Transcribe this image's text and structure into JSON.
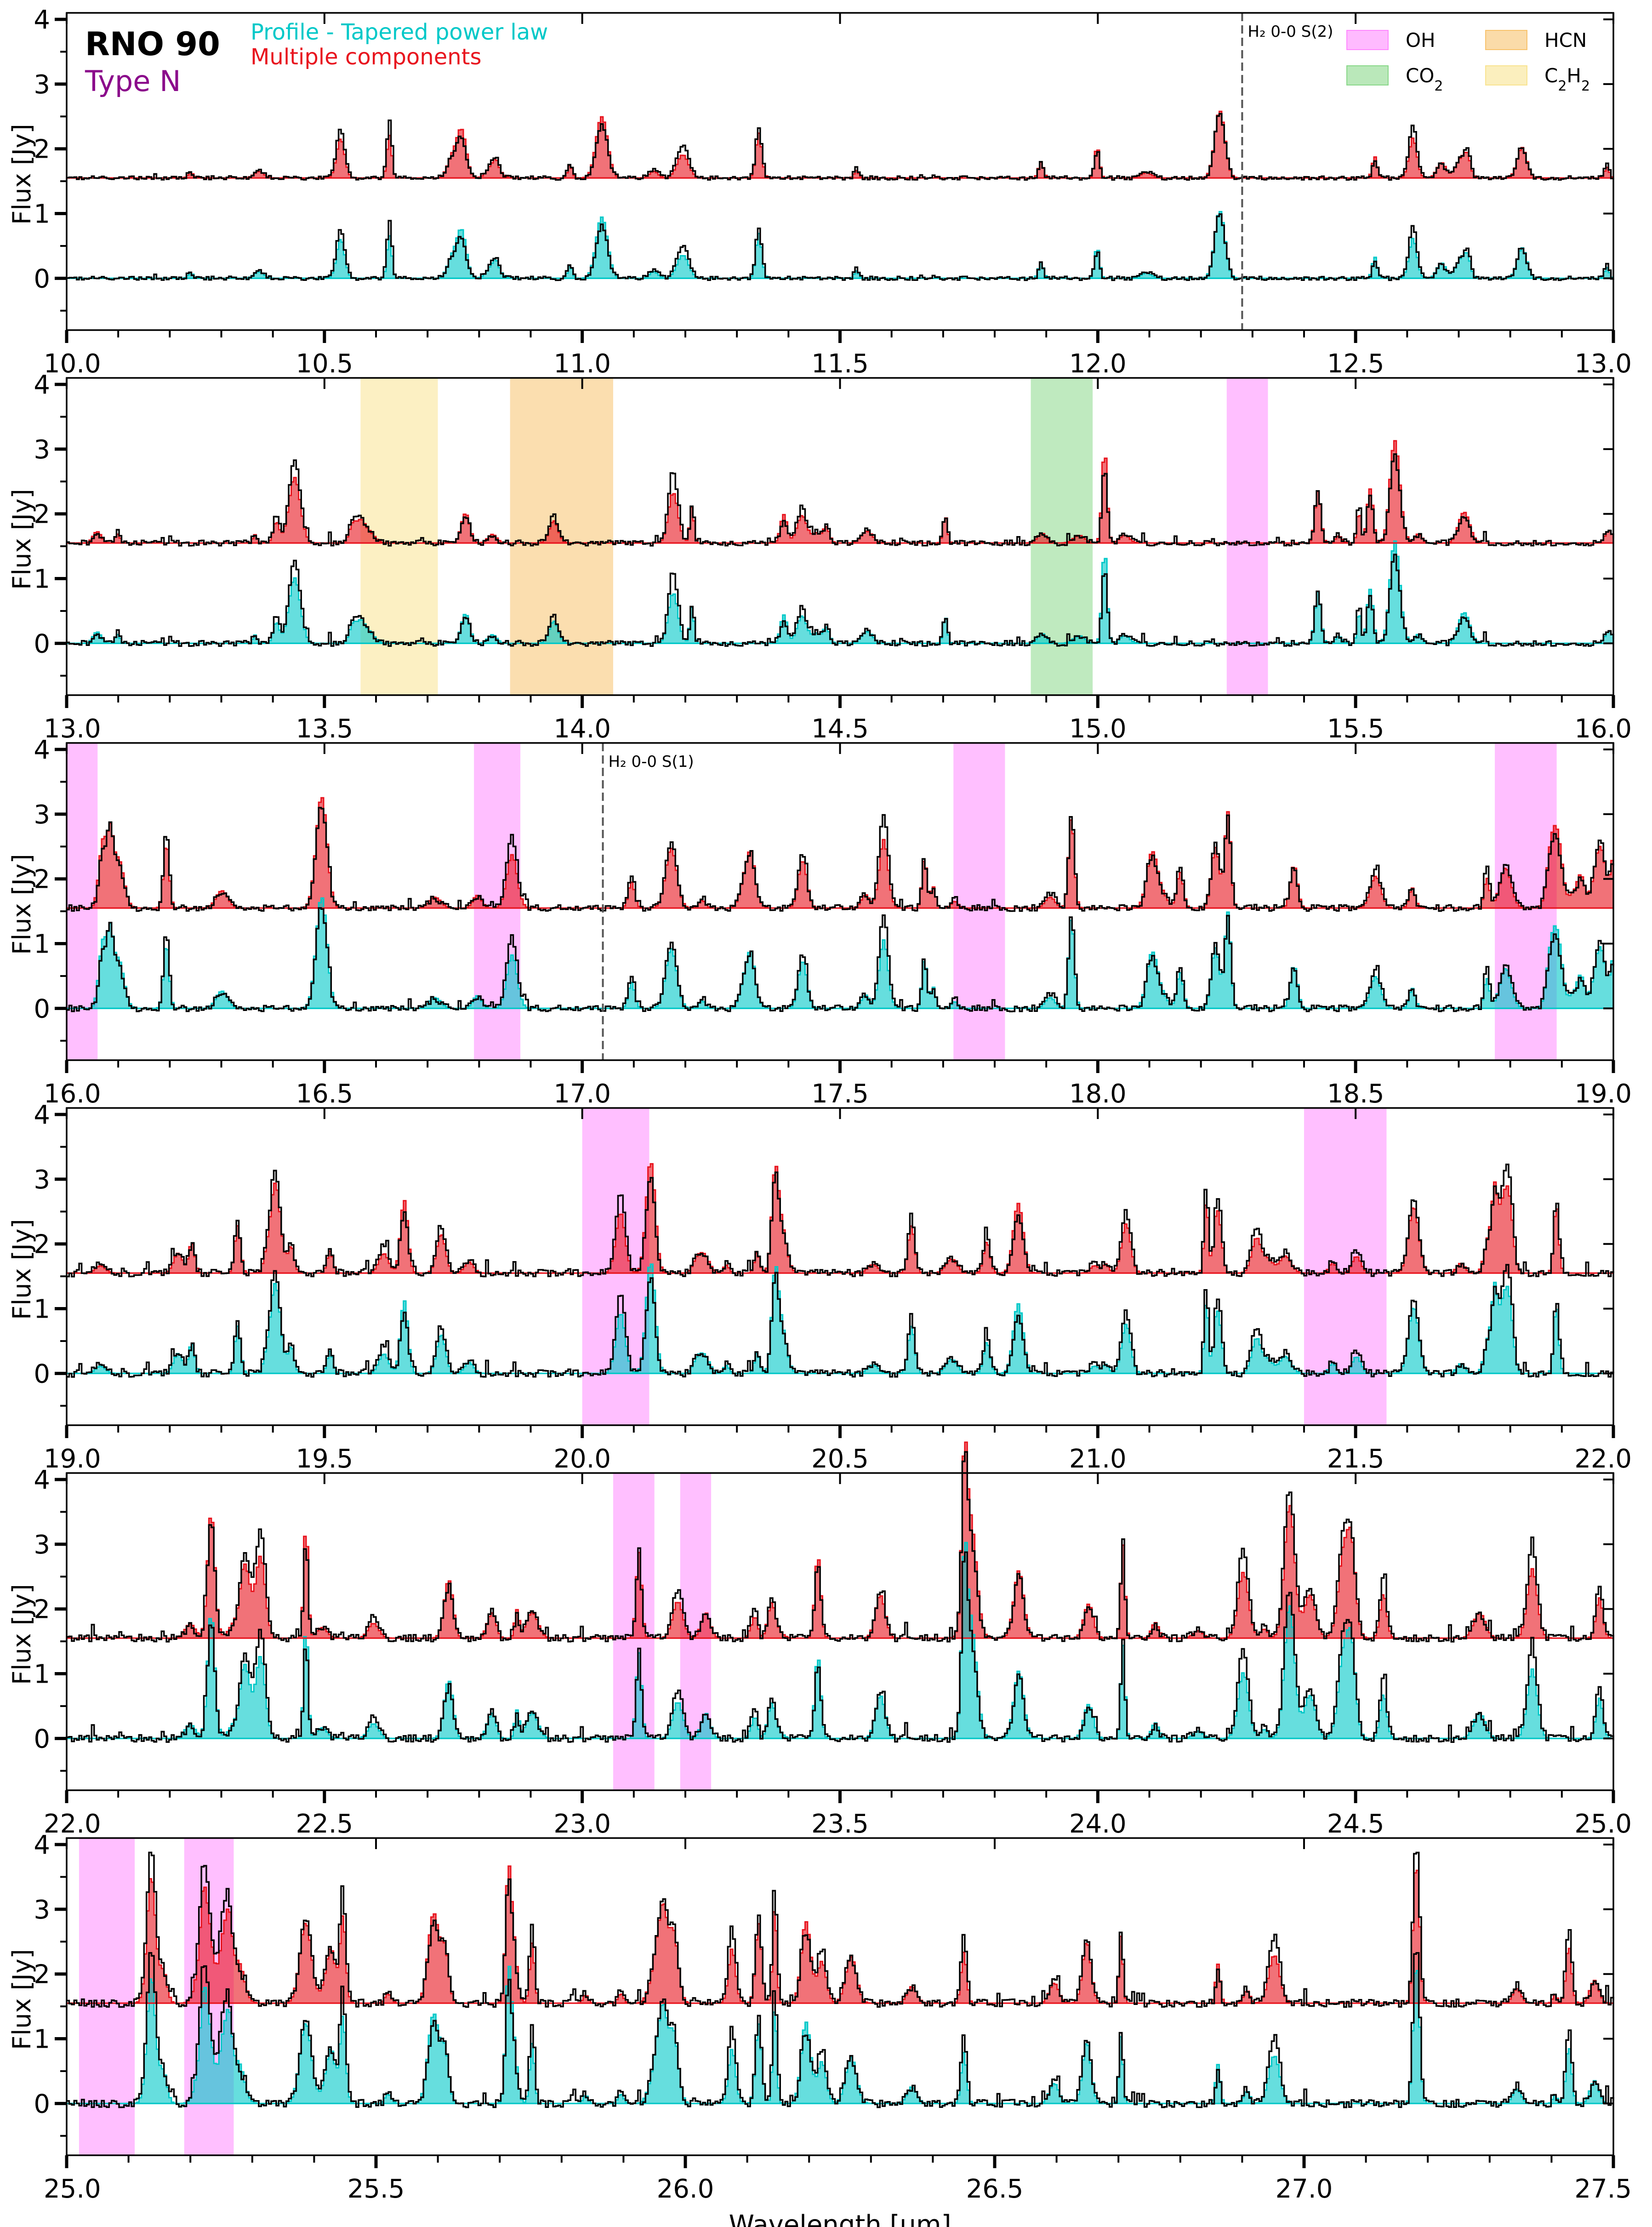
{
  "figure": {
    "object_name": "RNO 90",
    "type_label": "Type N",
    "xlabel": "Wavelength [μm]",
    "colors": {
      "observed": "#000000",
      "profile": "#00c8c8",
      "multi": "#e8141e",
      "type_label": "#8b0a8b",
      "OH": "#ff66ff",
      "CO2": "#66cc66",
      "HCN": "#f5b041",
      "C2H2": "#f7dc6f"
    },
    "legend_lines": [
      {
        "text": "Profile - Tapered power law",
        "color": "#00c8c8"
      },
      {
        "text": "Multiple components",
        "color": "#e8141e"
      }
    ],
    "species_legend": [
      {
        "key": "OH",
        "parts": [
          [
            "OH",
            ""
          ]
        ],
        "color": "#ff66ff"
      },
      {
        "key": "HCN",
        "parts": [
          [
            "HCN",
            ""
          ]
        ],
        "color": "#f5b041"
      },
      {
        "key": "CO2",
        "parts": [
          [
            "CO",
            ""
          ],
          [
            "2",
            "sub"
          ]
        ],
        "color": "#66cc66"
      },
      {
        "key": "C2H2",
        "parts": [
          [
            "C",
            ""
          ],
          [
            "2",
            "sub"
          ],
          [
            "H",
            ""
          ],
          [
            "2",
            "sub"
          ]
        ],
        "color": "#f7dc6f"
      }
    ]
  },
  "chart_data": [
    {
      "type": "line",
      "xlim": [
        10.0,
        13.0
      ],
      "ylim": [
        -0.8,
        4.1
      ],
      "ylabel": "Flux [Jy]",
      "xticks": [
        "10.0",
        "10.5",
        "11.0",
        "11.5",
        "12.0",
        "12.5",
        "13.0"
      ],
      "yticks": [
        "0",
        "1",
        "2",
        "3",
        "4"
      ],
      "offset": 1.55,
      "activity": 0.25,
      "bands": [],
      "vlines": [
        {
          "x": 12.28,
          "label": "H₂ 0-0 S(2)"
        }
      ]
    },
    {
      "type": "line",
      "xlim": [
        13.0,
        16.0
      ],
      "ylim": [
        -0.8,
        4.1
      ],
      "ylabel": "Flux [Jy]",
      "xticks": [
        "13.0",
        "13.5",
        "14.0",
        "14.5",
        "15.0",
        "15.5",
        "16.0"
      ],
      "yticks": [
        "0",
        "1",
        "2",
        "3",
        "4"
      ],
      "offset": 1.55,
      "activity": 0.55,
      "bands": [
        {
          "x0": 13.57,
          "x1": 13.72,
          "species": "C2H2"
        },
        {
          "x0": 13.86,
          "x1": 14.06,
          "species": "HCN"
        },
        {
          "x0": 14.87,
          "x1": 14.99,
          "species": "CO2"
        },
        {
          "x0": 15.25,
          "x1": 15.33,
          "species": "OH"
        }
      ],
      "vlines": []
    },
    {
      "type": "line",
      "xlim": [
        16.0,
        19.0
      ],
      "ylim": [
        -0.8,
        4.1
      ],
      "ylabel": "Flux [Jy]",
      "xticks": [
        "16.0",
        "16.5",
        "17.0",
        "17.5",
        "18.0",
        "18.5",
        "19.0"
      ],
      "yticks": [
        "0",
        "1",
        "2",
        "3",
        "4"
      ],
      "offset": 1.55,
      "activity": 0.7,
      "bands": [
        {
          "x0": 16.0,
          "x1": 16.06,
          "species": "OH"
        },
        {
          "x0": 16.79,
          "x1": 16.88,
          "species": "OH"
        },
        {
          "x0": 17.72,
          "x1": 17.82,
          "species": "OH"
        },
        {
          "x0": 18.77,
          "x1": 18.89,
          "species": "OH"
        }
      ],
      "vlines": [
        {
          "x": 17.04,
          "label": "H₂ 0-0 S(1)"
        }
      ]
    },
    {
      "type": "line",
      "xlim": [
        19.0,
        22.0
      ],
      "ylim": [
        -0.8,
        4.1
      ],
      "ylabel": "Flux [Jy]",
      "xticks": [
        "19.0",
        "19.5",
        "20.0",
        "20.5",
        "21.0",
        "21.5",
        "22.0"
      ],
      "yticks": [
        "0",
        "1",
        "2",
        "3",
        "4"
      ],
      "offset": 1.55,
      "activity": 0.85,
      "bands": [
        {
          "x0": 20.0,
          "x1": 20.13,
          "species": "OH"
        },
        {
          "x0": 21.4,
          "x1": 21.56,
          "species": "OH"
        }
      ],
      "vlines": []
    },
    {
      "type": "line",
      "xlim": [
        22.0,
        25.0
      ],
      "ylim": [
        -0.8,
        4.1
      ],
      "ylabel": "Flux [Jy]",
      "xticks": [
        "22.0",
        "22.5",
        "23.0",
        "23.5",
        "24.0",
        "24.5",
        "25.0"
      ],
      "yticks": [
        "0",
        "1",
        "2",
        "3",
        "4"
      ],
      "offset": 1.55,
      "activity": 0.9,
      "bands": [
        {
          "x0": 23.06,
          "x1": 23.14,
          "species": "OH"
        },
        {
          "x0": 23.19,
          "x1": 23.25,
          "species": "OH"
        }
      ],
      "vlines": []
    },
    {
      "type": "line",
      "xlim": [
        25.0,
        27.5
      ],
      "ylim": [
        -0.8,
        4.1
      ],
      "ylabel": "Flux [Jy]",
      "xlabel": "Wavelength [μm]",
      "xticks": [
        "25.0",
        "25.5",
        "26.0",
        "26.5",
        "27.0",
        "27.5"
      ],
      "yticks": [
        "0",
        "1",
        "2",
        "3",
        "4"
      ],
      "offset": 1.55,
      "activity": 1.0,
      "bands": [
        {
          "x0": 25.02,
          "x1": 25.11,
          "species": "OH"
        },
        {
          "x0": 25.19,
          "x1": 25.27,
          "species": "OH"
        }
      ],
      "vlines": []
    }
  ]
}
